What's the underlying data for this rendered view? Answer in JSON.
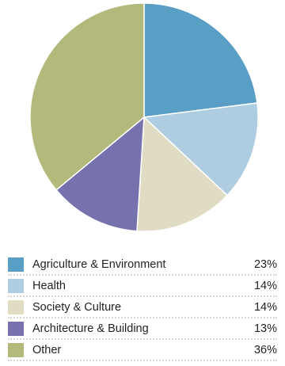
{
  "chart_data": {
    "type": "pie",
    "slices": [
      {
        "label": "Agriculture & Environment",
        "value": 23,
        "display": "23%",
        "color": "#599ec4"
      },
      {
        "label": "Health",
        "value": 14,
        "display": "14%",
        "color": "#afcde0"
      },
      {
        "label": "Society & Culture",
        "value": 14,
        "display": "14%",
        "color": "#e0dbc3"
      },
      {
        "label": "Architecture & Building",
        "value": 13,
        "display": "13%",
        "color": "#7672ad"
      },
      {
        "label": "Other",
        "value": 36,
        "display": "36%",
        "color": "#b2b97b"
      }
    ],
    "legend": "bottom",
    "start": "12 o'clock, clockwise"
  }
}
